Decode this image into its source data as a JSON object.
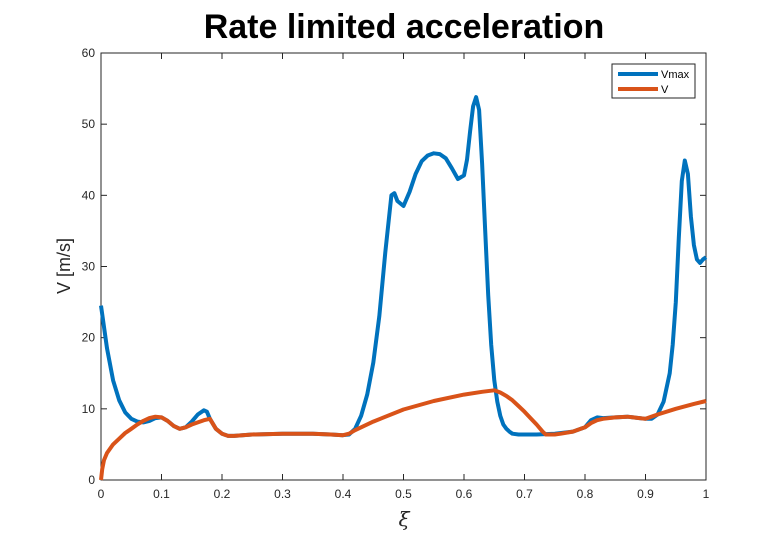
{
  "chart_data": {
    "type": "line",
    "title": "Rate limited acceleration",
    "xlabel": "ξ",
    "ylabel": "V [m/s]",
    "xlim": [
      0,
      1
    ],
    "ylim": [
      0,
      60
    ],
    "xticks": [
      "0",
      "0.1",
      "0.2",
      "0.3",
      "0.4",
      "0.5",
      "0.6",
      "0.7",
      "0.8",
      "0.9",
      "1"
    ],
    "yticks": [
      "0",
      "10",
      "20",
      "30",
      "40",
      "50",
      "60"
    ],
    "grid": false,
    "legend_position": "top-right",
    "series": [
      {
        "name": "Vmax",
        "color": "#0072BD",
        "x": [
          0,
          0.01,
          0.02,
          0.03,
          0.04,
          0.05,
          0.06,
          0.07,
          0.08,
          0.09,
          0.1,
          0.11,
          0.12,
          0.13,
          0.14,
          0.15,
          0.16,
          0.17,
          0.175,
          0.18,
          0.19,
          0.2,
          0.21,
          0.22,
          0.25,
          0.3,
          0.35,
          0.38,
          0.4,
          0.41,
          0.42,
          0.43,
          0.44,
          0.45,
          0.46,
          0.47,
          0.48,
          0.485,
          0.49,
          0.5,
          0.51,
          0.52,
          0.53,
          0.54,
          0.55,
          0.56,
          0.57,
          0.58,
          0.59,
          0.6,
          0.605,
          0.61,
          0.615,
          0.62,
          0.625,
          0.63,
          0.635,
          0.64,
          0.645,
          0.65,
          0.655,
          0.66,
          0.665,
          0.67,
          0.675,
          0.68,
          0.69,
          0.7,
          0.72,
          0.75,
          0.78,
          0.8,
          0.81,
          0.82,
          0.83,
          0.85,
          0.87,
          0.89,
          0.9,
          0.91,
          0.92,
          0.93,
          0.94,
          0.945,
          0.95,
          0.955,
          0.96,
          0.965,
          0.97,
          0.975,
          0.98,
          0.985,
          0.99,
          0.995,
          1
        ],
        "y": [
          24.5,
          18.5,
          14,
          11.2,
          9.5,
          8.6,
          8.2,
          8.1,
          8.3,
          8.7,
          8.8,
          8.3,
          7.6,
          7.2,
          7.4,
          8.2,
          9.2,
          9.8,
          9.6,
          8.6,
          7.2,
          6.5,
          6.2,
          6.2,
          6.4,
          6.5,
          6.5,
          6.4,
          6.3,
          6.4,
          7.2,
          9.0,
          12.0,
          16.5,
          23.0,
          32.0,
          40.0,
          40.3,
          39.2,
          38.5,
          40.5,
          43.0,
          44.8,
          45.6,
          45.9,
          45.8,
          45.2,
          43.8,
          42.3,
          42.8,
          45.0,
          49.0,
          52.5,
          53.8,
          52.0,
          44.5,
          35.0,
          26.0,
          19.0,
          14.0,
          11.0,
          9.0,
          7.8,
          7.2,
          6.8,
          6.5,
          6.4,
          6.4,
          6.4,
          6.5,
          6.8,
          7.4,
          8.4,
          8.8,
          8.7,
          8.8,
          8.9,
          8.7,
          8.6,
          8.6,
          9.2,
          11.0,
          15.0,
          19.0,
          25.0,
          34.0,
          42.0,
          44.9,
          43.0,
          37.0,
          33.0,
          31.0,
          30.5,
          31.0,
          31.3
        ]
      },
      {
        "name": "V",
        "color": "#D95319",
        "x": [
          0,
          0.002,
          0.005,
          0.01,
          0.02,
          0.03,
          0.04,
          0.05,
          0.06,
          0.07,
          0.08,
          0.09,
          0.1,
          0.11,
          0.12,
          0.13,
          0.14,
          0.15,
          0.16,
          0.17,
          0.18,
          0.19,
          0.2,
          0.21,
          0.22,
          0.25,
          0.3,
          0.35,
          0.38,
          0.4,
          0.41,
          0.42,
          0.45,
          0.5,
          0.55,
          0.6,
          0.63,
          0.65,
          0.66,
          0.67,
          0.68,
          0.69,
          0.7,
          0.71,
          0.72,
          0.73,
          0.735,
          0.74,
          0.75,
          0.76,
          0.78,
          0.8,
          0.81,
          0.82,
          0.83,
          0.85,
          0.87,
          0.89,
          0.9,
          0.92,
          0.95,
          0.98,
          1
        ],
        "y": [
          0,
          1.5,
          2.8,
          3.8,
          5.0,
          5.8,
          6.6,
          7.2,
          7.8,
          8.3,
          8.7,
          8.9,
          8.8,
          8.3,
          7.6,
          7.2,
          7.4,
          7.8,
          8.1,
          8.4,
          8.6,
          7.2,
          6.5,
          6.2,
          6.2,
          6.4,
          6.5,
          6.5,
          6.4,
          6.3,
          6.5,
          7.0,
          8.2,
          9.9,
          11.1,
          12.0,
          12.4,
          12.6,
          12.3,
          11.8,
          11.2,
          10.4,
          9.6,
          8.7,
          7.8,
          6.8,
          6.4,
          6.4,
          6.4,
          6.5,
          6.8,
          7.4,
          8.0,
          8.4,
          8.6,
          8.8,
          8.9,
          8.7,
          8.6,
          9.2,
          10.0,
          10.7,
          11.1
        ]
      }
    ]
  }
}
